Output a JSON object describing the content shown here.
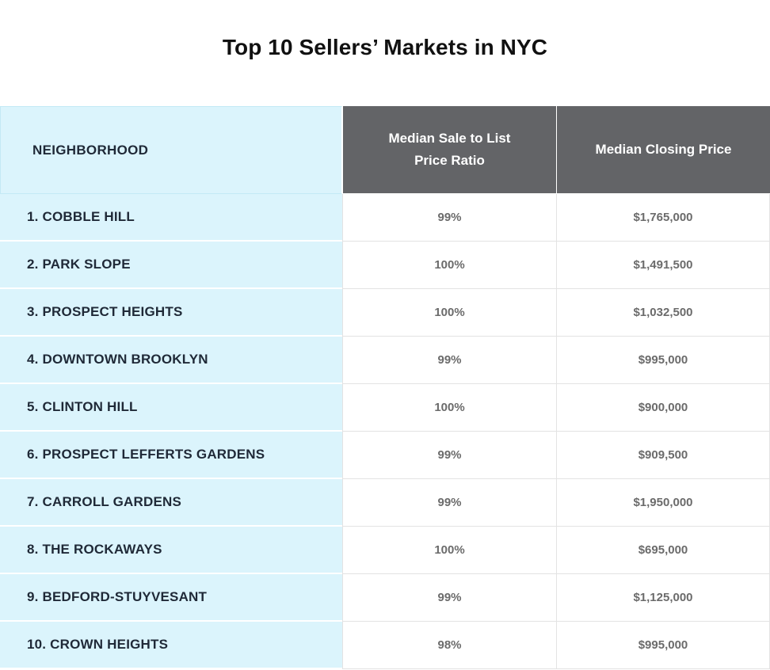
{
  "title": "Top 10 Sellers’ Markets in NYC",
  "table": {
    "headers": {
      "neighborhood": "NEIGHBORHOOD",
      "ratio": "Median Sale to List Price Ratio",
      "price": "Median Closing Price"
    },
    "rows": [
      {
        "neighborhood": "1.  COBBLE HILL",
        "ratio": "99%",
        "price": "$1,765,000"
      },
      {
        "neighborhood": "2. PARK SLOPE",
        "ratio": "100%",
        "price": "$1,491,500"
      },
      {
        "neighborhood": "3. PROSPECT HEIGHTS",
        "ratio": "100%",
        "price": "$1,032,500"
      },
      {
        "neighborhood": "4. DOWNTOWN BROOKLYN",
        "ratio": "99%",
        "price": "$995,000"
      },
      {
        "neighborhood": "5. CLINTON HILL",
        "ratio": "100%",
        "price": "$900,000"
      },
      {
        "neighborhood": "6. PROSPECT LEFFERTS GARDENS",
        "ratio": "99%",
        "price": "$909,500"
      },
      {
        "neighborhood": "7. CARROLL GARDENS",
        "ratio": "99%",
        "price": "$1,950,000"
      },
      {
        "neighborhood": "8. THE ROCKAWAYS",
        "ratio": "100%",
        "price": "$695,000"
      },
      {
        "neighborhood": "9. BEDFORD-STUYVESANT",
        "ratio": "99%",
        "price": "$1,125,000"
      },
      {
        "neighborhood": "10. CROWN HEIGHTS",
        "ratio": "98%",
        "price": "$995,000"
      }
    ]
  }
}
